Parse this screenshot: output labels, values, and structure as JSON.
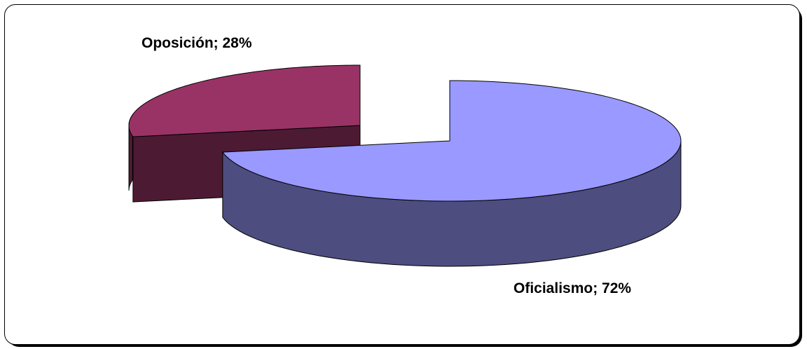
{
  "chart_data": {
    "type": "pie",
    "style": "3d-exploded",
    "slices": [
      {
        "label": "Oficialismo",
        "value": 72,
        "display": "Oficialismo; 72%",
        "top_color": "#9999ff",
        "side_color": "#4d4d80"
      },
      {
        "label": "Oposición",
        "value": 28,
        "display": "Oposición; 28%",
        "top_color": "#993366",
        "side_color": "#4d1a33"
      }
    ],
    "legend": "none",
    "grid": false
  }
}
